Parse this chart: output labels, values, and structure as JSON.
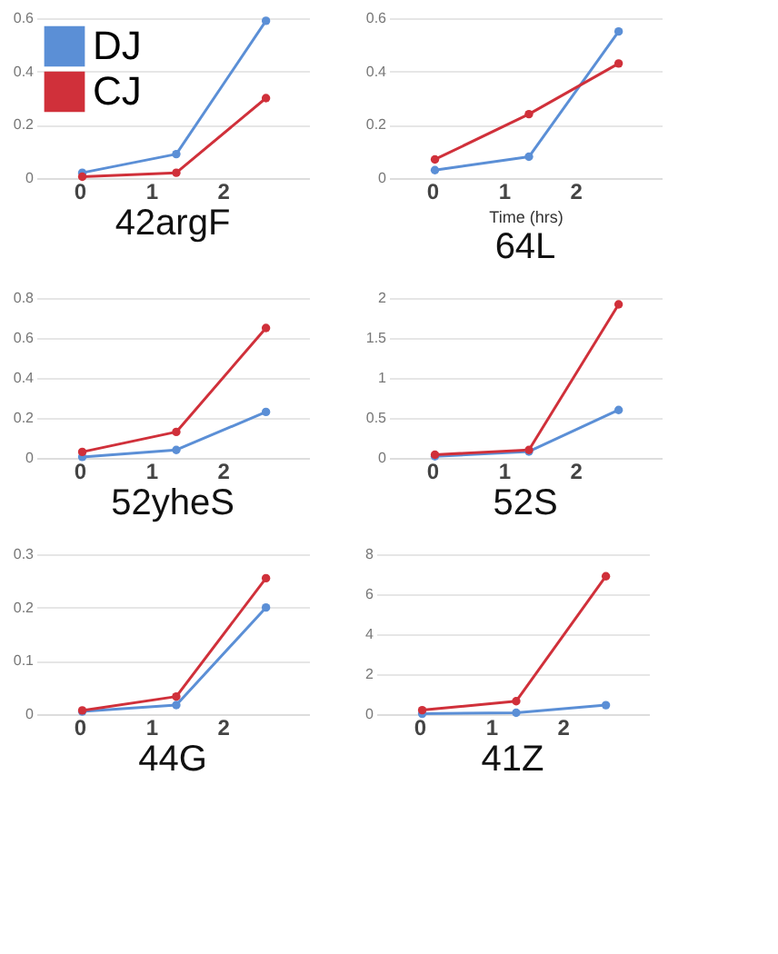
{
  "chart_data": [
    {
      "type": "line",
      "title": "42argF",
      "x": [
        0.04,
        1.35,
        2.6
      ],
      "xlim": [
        -0.6,
        3.2
      ],
      "xticks": [
        0,
        1,
        2
      ],
      "ylim": [
        0,
        0.6
      ],
      "yticks": [
        0,
        0.2,
        0.4,
        0.6
      ],
      "grid": "y",
      "marker": "circle",
      "legend": "top left",
      "series": [
        {
          "name": "DJ",
          "color": "#5b8fd6",
          "values": [
            0.02,
            0.09,
            0.59
          ]
        },
        {
          "name": "CJ",
          "color": "#d0303a",
          "values": [
            0.005,
            0.02,
            0.3
          ]
        }
      ]
    },
    {
      "type": "line",
      "title": "64L",
      "xlabel": "Time (hrs)",
      "x": [
        0.04,
        1.35,
        2.6
      ],
      "xlim": [
        -0.6,
        3.2
      ],
      "xticks": [
        0,
        1,
        2
      ],
      "ylim": [
        0,
        0.6
      ],
      "yticks": [
        0,
        0.2,
        0.4,
        0.6
      ],
      "grid": "y",
      "marker": "circle",
      "series": [
        {
          "color": "#5b8fd6",
          "values": [
            0.03,
            0.08,
            0.55
          ]
        },
        {
          "color": "#d0303a",
          "values": [
            0.07,
            0.24,
            0.43
          ]
        }
      ]
    },
    {
      "type": "line",
      "title": "52yheS",
      "x": [
        0.04,
        1.35,
        2.6
      ],
      "xlim": [
        -0.6,
        3.2
      ],
      "xticks": [
        0,
        1,
        2
      ],
      "ylim": [
        0,
        0.8
      ],
      "yticks": [
        0,
        0.2,
        0.4,
        0.6,
        0.8
      ],
      "grid": "y",
      "marker": "circle",
      "series": [
        {
          "color": "#5b8fd6",
          "values": [
            0.005,
            0.04,
            0.23
          ]
        },
        {
          "color": "#d0303a",
          "values": [
            0.03,
            0.13,
            0.65
          ]
        }
      ]
    },
    {
      "type": "line",
      "title": "52S",
      "x": [
        0.04,
        1.35,
        2.6
      ],
      "xlim": [
        -0.6,
        3.2
      ],
      "xticks": [
        0,
        1,
        2
      ],
      "ylim": [
        0,
        2
      ],
      "yticks": [
        0,
        0.5,
        1,
        1.5,
        2
      ],
      "grid": "y",
      "marker": "circle",
      "series": [
        {
          "color": "#5b8fd6",
          "values": [
            0.02,
            0.08,
            0.6
          ]
        },
        {
          "color": "#d0303a",
          "values": [
            0.04,
            0.1,
            1.92
          ]
        }
      ]
    },
    {
      "type": "line",
      "title": "44G",
      "x": [
        0.04,
        1.35,
        2.6
      ],
      "xlim": [
        -0.6,
        3.2
      ],
      "xticks": [
        0,
        1,
        2
      ],
      "ylim": [
        0,
        0.3
      ],
      "yticks": [
        0,
        0.1,
        0.2,
        0.3
      ],
      "grid": "y",
      "marker": "circle",
      "series": [
        {
          "color": "#5b8fd6",
          "values": [
            0.005,
            0.017,
            0.2
          ]
        },
        {
          "color": "#d0303a",
          "values": [
            0.007,
            0.033,
            0.255
          ]
        }
      ]
    },
    {
      "type": "line",
      "title": "41Z",
      "x": [
        0.04,
        1.35,
        2.6
      ],
      "xlim": [
        -0.6,
        3.2
      ],
      "xticks": [
        0,
        1,
        2
      ],
      "ylim": [
        0,
        8
      ],
      "yticks": [
        0,
        2,
        4,
        6,
        8
      ],
      "grid": "y",
      "marker": "circle",
      "series": [
        {
          "color": "#5b8fd6",
          "values": [
            0.02,
            0.07,
            0.45
          ]
        },
        {
          "color": "#d0303a",
          "values": [
            0.2,
            0.65,
            6.9
          ]
        }
      ]
    }
  ]
}
